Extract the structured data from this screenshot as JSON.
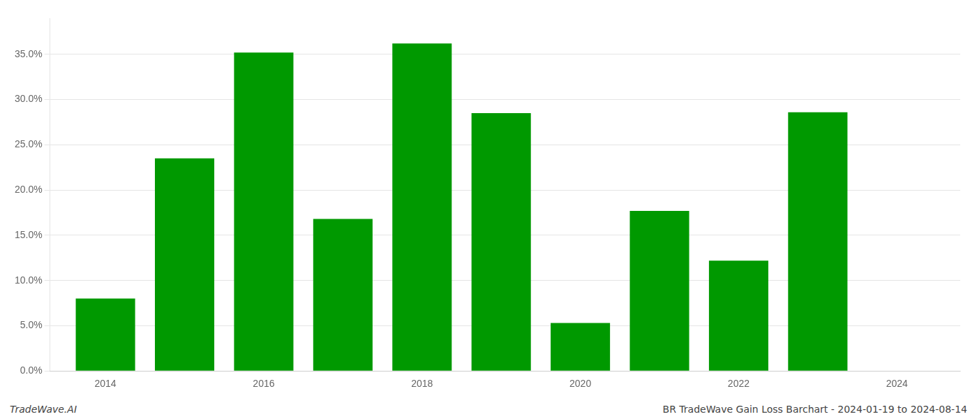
{
  "chart_data": {
    "type": "bar",
    "x": [
      2014,
      2015,
      2016,
      2017,
      2018,
      2019,
      2020,
      2021,
      2022,
      2023
    ],
    "values": [
      0.08,
      0.235,
      0.352,
      0.168,
      0.362,
      0.285,
      0.053,
      0.177,
      0.122,
      0.286
    ],
    "color": "#009900",
    "xlim": [
      2013.3,
      2024.8
    ],
    "xticks": [
      2014,
      2016,
      2018,
      2020,
      2022,
      2024
    ],
    "ylim": [
      0,
      0.39
    ],
    "yticks": [
      {
        "value": 0.0,
        "label": "0.0%"
      },
      {
        "value": 0.05,
        "label": "5.0%"
      },
      {
        "value": 0.1,
        "label": "10.0%"
      },
      {
        "value": 0.15,
        "label": "15.0%"
      },
      {
        "value": 0.2,
        "label": "20.0%"
      },
      {
        "value": 0.25,
        "label": "25.0%"
      },
      {
        "value": 0.3,
        "label": "30.0%"
      },
      {
        "value": 0.35,
        "label": "35.0%"
      }
    ],
    "grid": "y",
    "annotations": [
      "TradeWave.AI",
      "BR TradeWave Gain Loss Barchart - 2024-01-19 to 2024-08-14"
    ]
  }
}
